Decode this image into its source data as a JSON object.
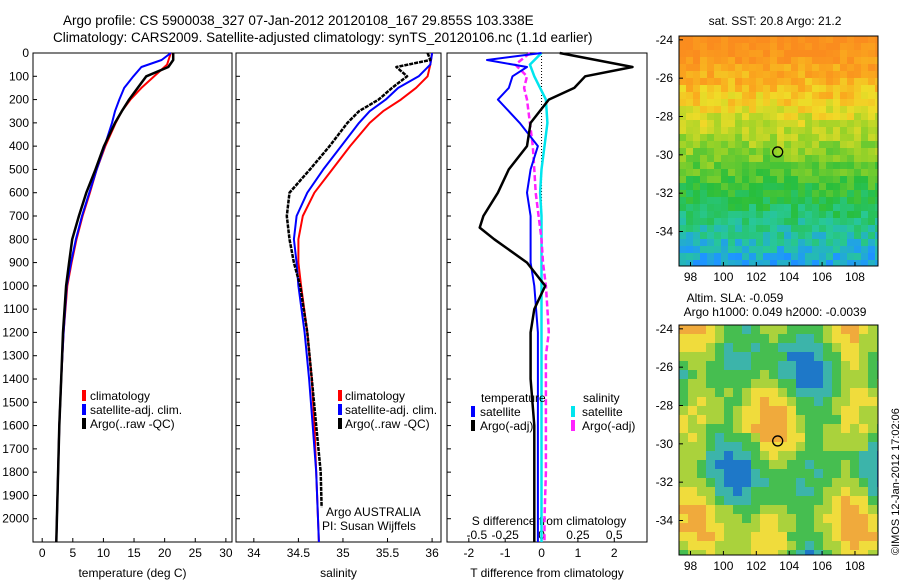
{
  "header": {
    "line1": "Argo profile: CS 5900038_327 07-Jan-2012 20120108_167 29.855S 103.338E",
    "line2": "Climatology: CARS2009. Satellite-adjusted climatology: synTS_20120106.nc (1.1d earlier)"
  },
  "colors": {
    "clim": "#ff0000",
    "sat": "#0000ff",
    "argo": "#000000",
    "sat_s": "#00e5ee",
    "argo_s": "#ff22ff"
  },
  "chart_data": [
    {
      "type": "line",
      "xlabel": "temperature (deg C)",
      "xlim": [
        -1.5,
        31
      ],
      "x_ticks": [
        0,
        5,
        10,
        15,
        20,
        25,
        30
      ],
      "ylim": [
        2100,
        0
      ],
      "y_ticks": [
        0,
        100,
        200,
        300,
        400,
        500,
        600,
        700,
        800,
        900,
        1000,
        1100,
        1200,
        1300,
        1400,
        1500,
        1600,
        1700,
        1800,
        1900,
        2000
      ],
      "legend": [
        "climatology",
        "satellite-adj. clim.",
        "Argo(..raw -QC)"
      ],
      "series": [
        {
          "name": "climatology",
          "depth": [
            0,
            50,
            100,
            150,
            200,
            250,
            300,
            400,
            500,
            600,
            700,
            800,
            900,
            1000,
            1200,
            1400,
            1600,
            1800,
            2000,
            2100
          ],
          "values": [
            21.0,
            20.4,
            18.3,
            16.2,
            14.4,
            13.0,
            12.0,
            10.3,
            8.9,
            7.8,
            6.6,
            5.6,
            4.8,
            4.1,
            3.5,
            3.1,
            2.8,
            2.6,
            2.4,
            2.3
          ]
        },
        {
          "name": "satellite-adj. clim.",
          "depth": [
            0,
            30,
            60,
            100,
            150,
            200,
            250,
            300,
            400,
            500,
            600,
            700,
            800,
            900,
            1000,
            1200,
            1400,
            1600,
            1800,
            2000,
            2100
          ],
          "values": [
            21.0,
            19.5,
            16.2,
            14.9,
            13.4,
            12.6,
            11.9,
            11.4,
            10.2,
            8.9,
            7.7,
            6.5,
            5.5,
            4.7,
            4.0,
            3.5,
            3.1,
            2.8,
            2.6,
            2.4,
            2.3
          ]
        },
        {
          "name": "Argo(..raw -QC)",
          "depth": [
            0,
            30,
            60,
            100,
            150,
            200,
            250,
            300,
            400,
            500,
            600,
            700,
            800,
            900,
            1000,
            1200,
            1400,
            1600,
            1800,
            2000,
            2100
          ],
          "values": [
            21.4,
            21.4,
            20.6,
            17.0,
            15.6,
            14.2,
            13.0,
            11.9,
            10.1,
            8.7,
            7.2,
            6.0,
            4.9,
            4.4,
            3.9,
            3.4,
            3.1,
            2.8,
            2.6,
            2.4,
            2.3
          ]
        }
      ]
    },
    {
      "type": "line",
      "xlabel": "salinity",
      "xlim": [
        33.8,
        36.1
      ],
      "x_ticks": [
        34,
        34.5,
        35,
        35.5,
        36
      ],
      "ylim": [
        2100,
        0
      ],
      "legend": [
        "climatology",
        "satellite-adj. clim.",
        "Argo(..raw -QC)"
      ],
      "annotation": [
        "Argo AUSTRALIA",
        "PI: Susan Wijffels"
      ],
      "series": [
        {
          "name": "climatology",
          "depth": [
            0,
            50,
            100,
            150,
            200,
            250,
            300,
            400,
            500,
            600,
            700,
            800,
            900,
            1000,
            1200,
            1400,
            1600,
            1800,
            2000,
            2100
          ],
          "values": [
            36.0,
            35.98,
            35.95,
            35.82,
            35.65,
            35.45,
            35.3,
            35.08,
            34.88,
            34.68,
            34.55,
            34.5,
            34.5,
            34.53,
            34.6,
            34.65,
            34.68,
            34.7,
            34.72,
            34.73
          ]
        },
        {
          "name": "satellite-adj. clim.",
          "depth": [
            0,
            50,
            100,
            150,
            200,
            250,
            300,
            400,
            500,
            600,
            700,
            800,
            900,
            1000,
            1200,
            1400,
            1600,
            1800,
            2000,
            2100
          ],
          "values": [
            36.0,
            35.98,
            35.85,
            35.62,
            35.48,
            35.3,
            35.18,
            34.98,
            34.78,
            34.6,
            34.48,
            34.45,
            34.48,
            34.5,
            34.57,
            34.62,
            34.66,
            34.7,
            34.72,
            34.73
          ]
        },
        {
          "name": "Argo(..raw -QC)",
          "depth": [
            0,
            30,
            60,
            100,
            150,
            200,
            250,
            300,
            400,
            500,
            600,
            700,
            800,
            900,
            1000,
            1200,
            1400,
            1600,
            1800,
            1950
          ],
          "values": [
            35.95,
            35.98,
            35.6,
            35.72,
            35.55,
            35.4,
            35.18,
            35.05,
            34.85,
            34.63,
            34.4,
            34.37,
            34.4,
            34.45,
            34.52,
            34.6,
            34.65,
            34.7,
            34.75,
            34.76
          ]
        }
      ]
    },
    {
      "type": "line",
      "xlabel": "T difference from climatology",
      "xlabel_top": "S difference from climatology",
      "xlim": [
        -2.6,
        2.9
      ],
      "x_ticks": [
        -2,
        -1,
        0,
        1,
        2
      ],
      "x_ticks_s": [
        "-0.5",
        "-0.25",
        "0",
        "0.25",
        "0.5"
      ],
      "ylim": [
        2100,
        0
      ],
      "legend_t": {
        "title": "temperature",
        "items": [
          "satellite",
          "Argo(-adj)"
        ]
      },
      "legend_s": {
        "title": "salinity",
        "items": [
          "satellite",
          "Argo(-adj)"
        ]
      },
      "series": [
        {
          "name": "satellite",
          "depth": [
            0,
            30,
            60,
            100,
            150,
            200,
            300,
            400,
            500,
            600,
            700,
            800,
            900,
            1000,
            1200,
            1400,
            1600,
            1800,
            2000,
            2100
          ],
          "values": [
            0,
            -1.5,
            -0.4,
            -0.8,
            -0.9,
            -1.2,
            -0.6,
            -0.1,
            -0.3,
            -0.4,
            -0.3,
            -0.3,
            -0.3,
            -0.2,
            -0.1,
            -0.1,
            -0.1,
            -0.1,
            -0.1,
            -0.1
          ]
        },
        {
          "name": "Argo(-adj)",
          "depth": [
            0,
            30,
            60,
            100,
            150,
            200,
            300,
            400,
            500,
            600,
            700,
            750,
            800,
            900,
            1000,
            1100,
            1200,
            1300,
            1400,
            1600,
            1800,
            2000,
            2100
          ],
          "values": [
            0.5,
            1.5,
            2.5,
            1.2,
            0.9,
            0.2,
            -0.3,
            -0.4,
            -0.9,
            -1.2,
            -1.6,
            -1.7,
            -1.3,
            -0.4,
            0.1,
            -0.2,
            -0.3,
            -0.3,
            -0.3,
            -0.2,
            -0.2,
            -0.2,
            -0.2
          ]
        },
        {
          "name": "satellite (S)",
          "depth": [
            0,
            50,
            100,
            200,
            300,
            400,
            500,
            600,
            700,
            800,
            900,
            1000,
            1100,
            1200,
            1400,
            1600,
            1800,
            2000,
            2100
          ],
          "values": [
            0.0,
            -0.08,
            -0.05,
            0.03,
            0.04,
            0.02,
            0.0,
            -0.01,
            0.0,
            0.0,
            0.0,
            0.0,
            0.0,
            0.0,
            0.0,
            0.0,
            0.0,
            0.0,
            0.0
          ]
        },
        {
          "name": "Argo(-adj) (S)",
          "depth": [
            0,
            50,
            100,
            150,
            200,
            300,
            400,
            500,
            600,
            700,
            800,
            900,
            1000,
            1100,
            1200,
            1300,
            1400,
            1600,
            1800,
            2000,
            2100
          ],
          "values": [
            -0.08,
            -0.18,
            -0.1,
            -0.12,
            -0.1,
            -0.08,
            -0.06,
            -0.05,
            -0.04,
            -0.02,
            0.0,
            0.01,
            0.03,
            0.04,
            0.05,
            0.03,
            0.03,
            0.03,
            0.03,
            0.02,
            0.02
          ]
        }
      ]
    },
    {
      "type": "heatmap",
      "title": "sat. SST: 20.8 Argo: 21.2",
      "x_ticks": [
        98,
        100,
        102,
        104,
        106,
        108
      ],
      "y_ticks": [
        -24,
        -26,
        -28,
        -30,
        -32,
        -34
      ],
      "xlim": [
        97.3,
        109.4
      ],
      "ylim": [
        -35.8,
        -23.8
      ],
      "marker": {
        "lon": 103.3,
        "lat": -29.85
      }
    },
    {
      "type": "heatmap",
      "title": "Altim. SLA: -0.059",
      "subtitle": "Argo h1000: 0.049 h2000: -0.0039",
      "x_ticks": [
        98,
        100,
        102,
        104,
        106,
        108
      ],
      "y_ticks": [
        -24,
        -26,
        -28,
        -30,
        -32,
        -34
      ],
      "xlim": [
        97.3,
        109.4
      ],
      "ylim": [
        -35.8,
        -23.8
      ],
      "marker": {
        "lon": 103.3,
        "lat": -29.85
      }
    }
  ],
  "footer": {
    "credit": "©IMOS 12-Jan-2012 17:02:06"
  }
}
